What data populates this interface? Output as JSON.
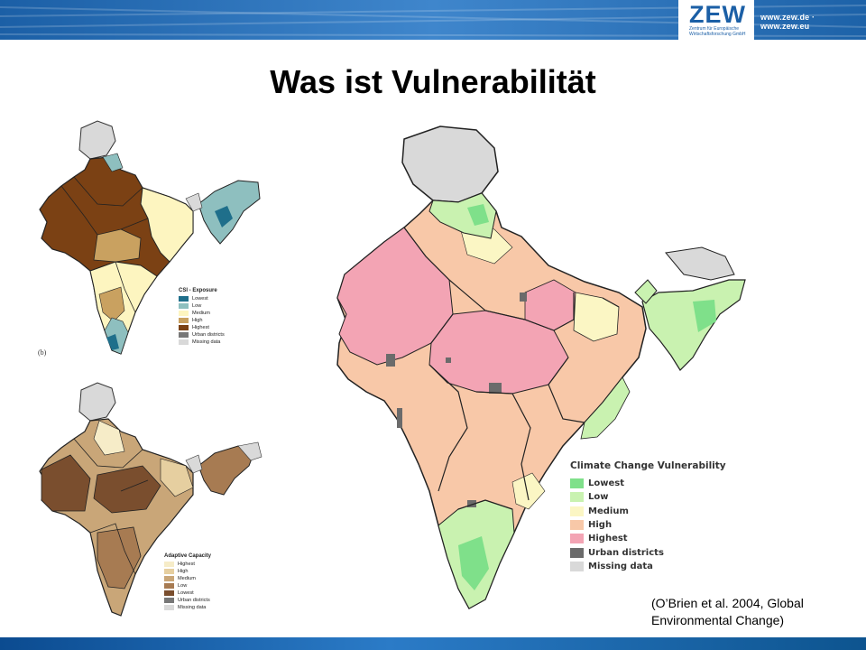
{
  "header": {
    "logo_text": "ZEW",
    "logo_subtitle": "Zentrum für Europäische Wirtschaftsforschung GmbH",
    "url": "www.zew.de · www.zew.eu",
    "colors": {
      "banner": "#1b5fa6",
      "banner_light": "#4a8fd0"
    }
  },
  "title": "Was ist Vulnerabilität",
  "maps": {
    "exposure": {
      "panel_label": "(b)",
      "legend_title": "CSI - Exposure",
      "legend": [
        {
          "label": "Lowest",
          "color": "#1f6f8b"
        },
        {
          "label": "Low",
          "color": "#8ebfbf"
        },
        {
          "label": "Medium",
          "color": "#fdf5c0"
        },
        {
          "label": "High",
          "color": "#c9a160"
        },
        {
          "label": "Highest",
          "color": "#7b4114"
        },
        {
          "label": "Urban districts",
          "color": "#777777"
        },
        {
          "label": "Missing data",
          "color": "#d9d9d9"
        }
      ]
    },
    "adaptive_capacity": {
      "legend_title": "Adaptive Capacity",
      "legend": [
        {
          "label": "Highest",
          "color": "#f6ecc8"
        },
        {
          "label": "High",
          "color": "#e6cfa0"
        },
        {
          "label": "Medium",
          "color": "#c9a678"
        },
        {
          "label": "Low",
          "color": "#a77b52"
        },
        {
          "label": "Lowest",
          "color": "#7a4e2e"
        },
        {
          "label": "Urban districts",
          "color": "#777777"
        },
        {
          "label": "Missing data",
          "color": "#d9d9d9"
        }
      ]
    },
    "vulnerability": {
      "legend_title": "Climate Change Vulnerability",
      "legend": [
        {
          "label": "Lowest",
          "color": "#7fe08a"
        },
        {
          "label": "Low",
          "color": "#c9f2b0"
        },
        {
          "label": "Medium",
          "color": "#fbf6c4"
        },
        {
          "label": "High",
          "color": "#f8c8a8"
        },
        {
          "label": "Highest",
          "color": "#f3a4b4"
        },
        {
          "label": "Urban districts",
          "color": "#6b6b6b"
        },
        {
          "label": "Missing data",
          "color": "#d9d9d9"
        }
      ]
    }
  },
  "citation": {
    "line1": "(O’Brien et al. 2004, Global",
    "line2": "Environmental Change)"
  }
}
